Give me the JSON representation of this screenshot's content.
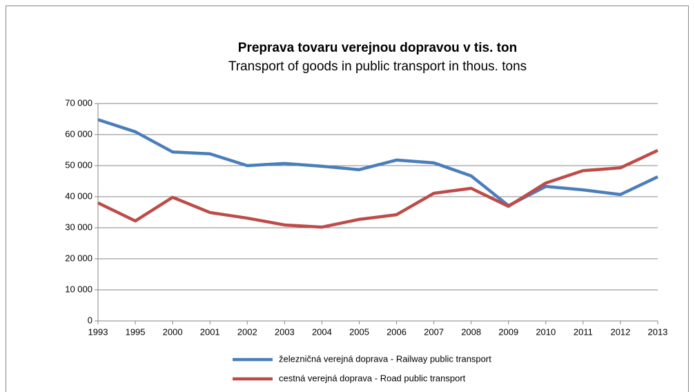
{
  "chart_data": {
    "type": "line",
    "title": "Preprava tovaru verejnou dopravou v tis. ton",
    "subtitle": "Transport of goods in public transport in thous. tons",
    "categories": [
      "1993",
      "1995",
      "2000",
      "2001",
      "2002",
      "2003",
      "2004",
      "2005",
      "2006",
      "2007",
      "2008",
      "2009",
      "2010",
      "2011",
      "2012",
      "2013"
    ],
    "series": [
      {
        "name": "železničná verejná doprava - Railway public transport",
        "color": "#4a7ebb",
        "values": [
          64800,
          60900,
          54400,
          53800,
          50000,
          50700,
          49800,
          48700,
          51800,
          50900,
          46700,
          37100,
          43300,
          42200,
          40700,
          46400
        ]
      },
      {
        "name": "cestná verejná doprava - Road public transport",
        "color": "#be4b48",
        "values": [
          38000,
          32200,
          39800,
          34900,
          33100,
          30900,
          30200,
          32700,
          34200,
          41100,
          42700,
          36900,
          44400,
          48400,
          49300,
          54900
        ]
      }
    ],
    "ylim": [
      0,
      70000
    ],
    "yticks": [
      0,
      {
        "value": 10000,
        "label": "10 000"
      },
      {
        "value": 20000,
        "label": "20 000"
      },
      {
        "value": 30000,
        "label": "30 000"
      },
      {
        "value": 40000,
        "label": "40 000"
      },
      {
        "value": 50000,
        "label": "50 000"
      },
      {
        "value": 60000,
        "label": "60 000"
      },
      {
        "value": 70000,
        "label": "70 000"
      }
    ],
    "grid": true,
    "legend": "bottom"
  }
}
